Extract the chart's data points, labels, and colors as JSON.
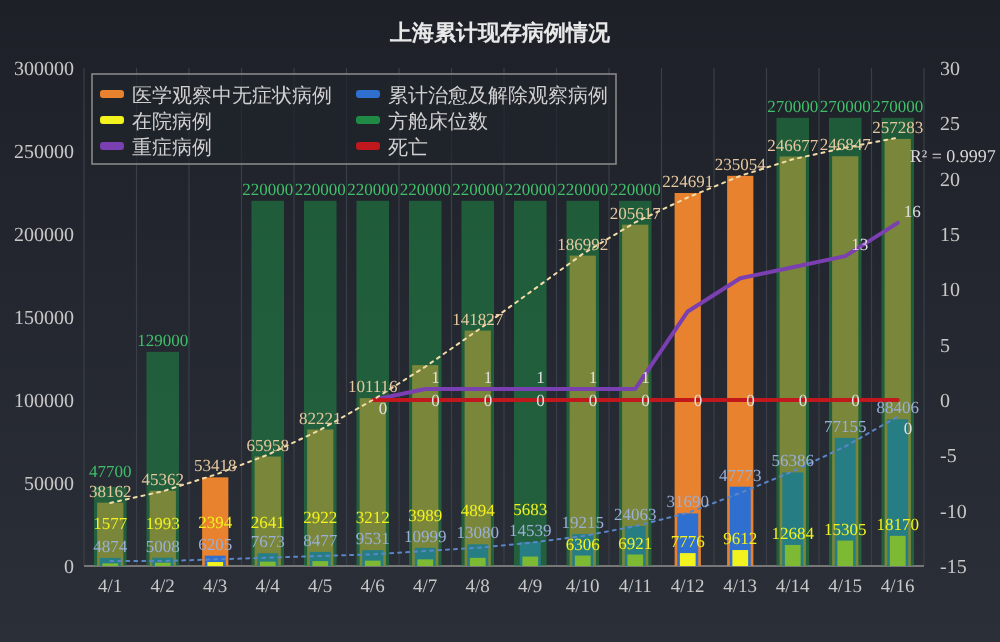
{
  "chart_data": {
    "type": "bar",
    "title": "上海累计现存病例情况",
    "categories": [
      "4/1",
      "4/2",
      "4/3",
      "4/4",
      "4/5",
      "4/6",
      "4/7",
      "4/8",
      "4/9",
      "4/10",
      "4/11",
      "4/12",
      "4/13",
      "4/14",
      "4/15",
      "4/16"
    ],
    "series": [
      {
        "name": "医学观察中无症状病例",
        "color": "#e8822e",
        "values": [
          38162,
          45362,
          53418,
          65958,
          82221,
          101116,
          121000,
          141827,
          null,
          186992,
          205617,
          224691,
          235054,
          246677,
          246847,
          257283
        ],
        "value_labels": [
          "38162",
          "45362",
          "53418",
          "65958",
          "82221",
          "101116",
          null,
          "141827",
          null,
          "186992",
          "205617",
          "224691",
          "235054",
          "246677",
          "246847",
          "257283"
        ]
      },
      {
        "name": "累计治愈及解除观察病例",
        "color": "#2f6fd0",
        "values": [
          4874,
          5008,
          6205,
          7673,
          8477,
          9531,
          10999,
          13080,
          14539,
          19215,
          24063,
          31690,
          47773,
          56386,
          77155,
          88406
        ],
        "value_labels": [
          "4874",
          "5008",
          "6205",
          "7673",
          "8477",
          "9531",
          "10999",
          "13080",
          "14539",
          "19215",
          "24063",
          "31690",
          "47773",
          "56386",
          "77155",
          "88406"
        ]
      },
      {
        "name": "在院病例",
        "color": "#f2f21e",
        "values": [
          1577,
          1993,
          2394,
          2641,
          2922,
          3212,
          3989,
          4894,
          5683,
          6306,
          6921,
          7776,
          9612,
          12684,
          15305,
          18170
        ],
        "value_labels": [
          "1577",
          "1993",
          "2394",
          "2641",
          "2922",
          "3212",
          "3989",
          "4894",
          "5683",
          "6306",
          "6921",
          "7776",
          "9612",
          "12684",
          "15305",
          "18170"
        ]
      },
      {
        "name": "方舱床位数",
        "color": "#1f8a45",
        "values": [
          47700,
          129000,
          null,
          220000,
          220000,
          220000,
          220000,
          220000,
          220000,
          220000,
          220000,
          null,
          null,
          270000,
          270000,
          270000
        ],
        "value_labels": [
          "47700",
          "129000",
          null,
          "220000",
          "220000",
          "220000",
          "220000",
          "220000",
          "220000",
          "220000",
          "220000",
          null,
          null,
          "270000",
          "270000",
          "270000"
        ]
      },
      {
        "name": "重症病例",
        "type": "line",
        "axis": "y2",
        "color": "#7a3fb0",
        "values": [
          null,
          null,
          null,
          null,
          null,
          0,
          1,
          1,
          1,
          1,
          1,
          8,
          11,
          12,
          13,
          16
        ],
        "value_labels": [
          null,
          null,
          null,
          null,
          null,
          null,
          "1",
          "1",
          "1",
          "1",
          "1",
          null,
          null,
          null,
          "13",
          "16"
        ]
      },
      {
        "name": "死亡",
        "type": "line",
        "axis": "y2",
        "color": "#c0181c",
        "values": [
          null,
          null,
          null,
          null,
          null,
          0,
          0,
          0,
          0,
          0,
          0,
          0,
          0,
          0,
          0,
          0
        ],
        "value_labels": [
          null,
          null,
          null,
          null,
          null,
          "0",
          "0",
          "0",
          "0",
          "0",
          "0",
          "0",
          "0",
          "0",
          "0",
          "0"
        ]
      },
      {
        "type": "line",
        "line_style": "dotted",
        "color": "#f2dca8",
        "x": [
          "4/1",
          "4/2",
          "4/3",
          "4/4",
          "4/5",
          "4/6",
          "4/7",
          "4/8",
          "4/9",
          "4/10",
          "4/11",
          "4/12",
          "4/13",
          "4/14",
          "4/15",
          "4/16"
        ],
        "values": [
          38000,
          45000,
          55000,
          67000,
          82000,
          100000,
          120000,
          142000,
          165000,
          188000,
          207000,
          222000,
          235000,
          245000,
          252000,
          258000
        ]
      },
      {
        "type": "line",
        "line_style": "dotted",
        "color": "#5a86c8",
        "x": [
          "4/1",
          "4/2",
          "4/3",
          "4/4",
          "4/5",
          "4/6",
          "4/7",
          "4/8",
          "4/9",
          "4/10",
          "4/11",
          "4/12",
          "4/13",
          "4/14",
          "4/15",
          "4/16"
        ],
        "values": [
          3000,
          3000,
          4000,
          5000,
          6000,
          7000,
          9000,
          11000,
          14000,
          18000,
          24000,
          32000,
          44000,
          57000,
          72000,
          90000
        ]
      }
    ],
    "ylim": [
      0,
      300000
    ],
    "yticks": [
      0,
      50000,
      100000,
      150000,
      200000,
      250000,
      300000
    ],
    "y2lim": [
      -15,
      30
    ],
    "y2ticks": [
      -15,
      -10,
      -5,
      0,
      5,
      10,
      15,
      20,
      25,
      30
    ],
    "annotations": [
      "R² = 0.9997"
    ],
    "legend": "top left",
    "grid": "x"
  }
}
